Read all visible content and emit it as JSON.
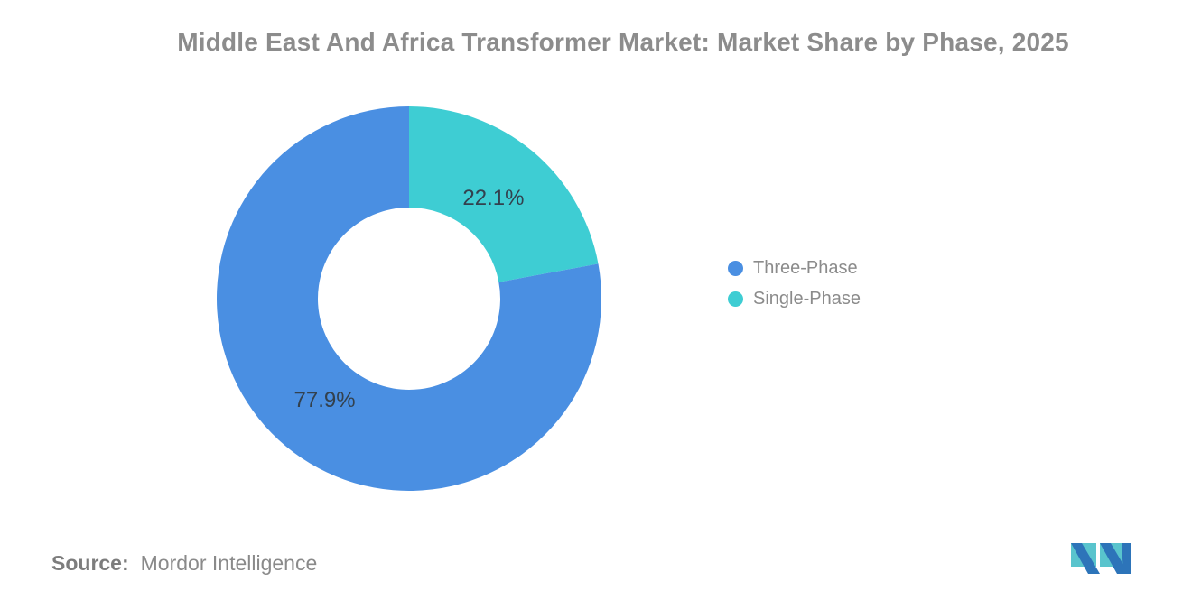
{
  "title": "Middle East And Africa Transformer Market: Market Share by Phase, 2025",
  "source": {
    "label": "Source:",
    "value": "Mordor Intelligence"
  },
  "colors": {
    "three_phase_blue": "#4a8fe2",
    "single_phase_teal": "#3ecdd3",
    "data_label": "#33414e",
    "title_gray": "#8c8c8c",
    "legend_gray": "#8b8b8b",
    "logo_blue": "#2d74b9",
    "logo_teal": "#59c4cd"
  },
  "chart_data": {
    "type": "pie",
    "subtype": "donut",
    "title": "Middle East And Africa Transformer Market: Market Share by Phase, 2025",
    "legend_position": "right",
    "direction": "clockwise",
    "start_angle": "12 o'clock",
    "slices": [
      {
        "label": "Three-Phase",
        "value": 77.9,
        "data_label": "77.9%",
        "color": "#4a8fe2"
      },
      {
        "label": "Single-Phase",
        "value": 22.1,
        "data_label": "22.1%",
        "color": "#3ecdd3"
      }
    ],
    "draw_order": [
      1,
      0
    ],
    "label_color": "#33414e"
  }
}
